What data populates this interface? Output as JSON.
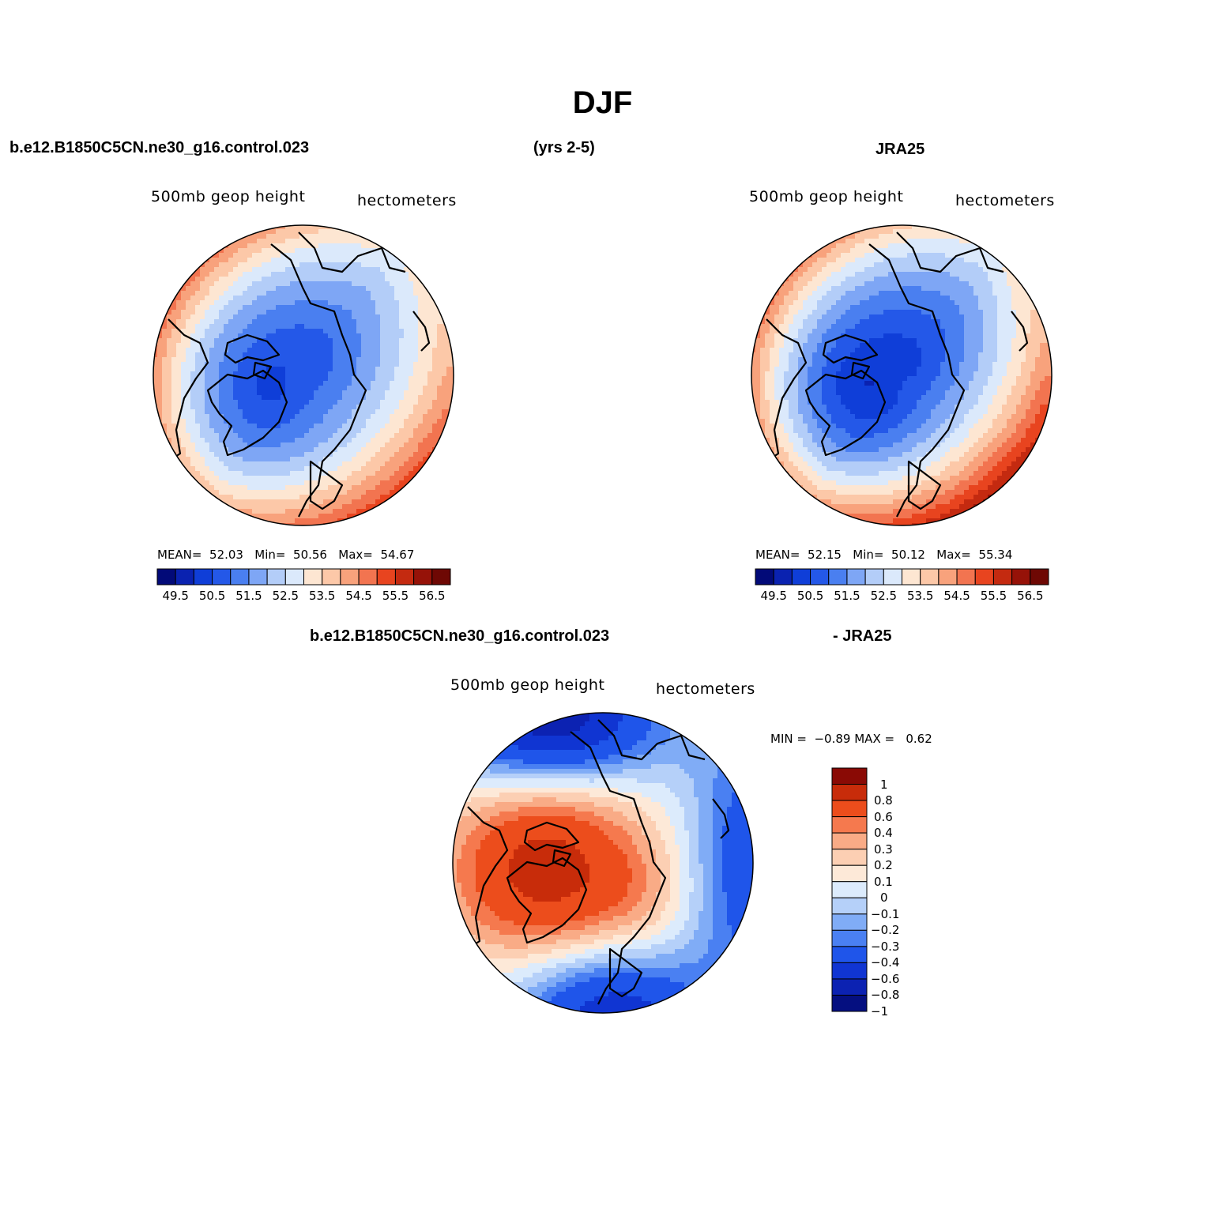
{
  "title": "DJF",
  "header": {
    "case": "b.e12.B1850C5CN.ne30_g16.control.023",
    "years": "(yrs 2-5)",
    "reference": "JRA25",
    "diff_left": "b.e12.B1850C5CN.ne30_g16.control.023",
    "diff_right": "- JRA25"
  },
  "colors": {
    "seq": [
      "#020a78",
      "#0a22b0",
      "#0f3ed8",
      "#2458e8",
      "#4a7ff0",
      "#7ea6f5",
      "#b3cdf8",
      "#dbe9fb",
      "#fde6d2",
      "#fcc8a8",
      "#f8a27c",
      "#f27450",
      "#e8441f",
      "#c42a10",
      "#961208",
      "#6e0804"
    ],
    "diff": [
      "#050f80",
      "#0c22b2",
      "#1035d2",
      "#1f55ea",
      "#4a80f2",
      "#80acf6",
      "#b5d0f9",
      "#dcebfc",
      "#fde9d8",
      "#fccfb3",
      "#f9ab86",
      "#f5794e",
      "#ec4d1c",
      "#c82c0a",
      "#8a0a05"
    ],
    "coast": "#000000"
  },
  "panels": [
    {
      "id": "model",
      "variable": "500mb  geop  height",
      "units": "hectometers",
      "stats": {
        "mean_label": "MEAN=",
        "mean": "52.03",
        "min_label": "Min=",
        "min": "50.56",
        "max_label": "Max=",
        "max": "54.67"
      },
      "field": {
        "center_value": 50.3,
        "pole_lon_shift": -25,
        "rim_value_warm": 55.0,
        "rim_value_cold": 52.2,
        "warm_direction_deg": 110
      }
    },
    {
      "id": "reference",
      "variable": "500mb  geop  height",
      "units": "hectometers",
      "stats": {
        "mean_label": "MEAN=",
        "mean": "52.15",
        "min_label": "Min=",
        "min": "50.12",
        "max_label": "Max=",
        "max": "55.34"
      },
      "field": {
        "center_value": 49.9,
        "pole_lon_shift": -20,
        "rim_value_warm": 55.6,
        "rim_value_cold": 52.0,
        "warm_direction_deg": 105
      }
    }
  ],
  "horizontal_colorbar": {
    "levels": [
      "49.5",
      "50.5",
      "51.5",
      "52.5",
      "53.5",
      "54.5",
      "55.5",
      "56.5"
    ]
  },
  "difference_panel": {
    "variable": "500mb  geop  height",
    "units": "hectometers",
    "stats": {
      "min_label": "MIN =",
      "min": "−0.89",
      "max_label": "MAX =",
      "max": "0.62"
    },
    "colorbar_levels": [
      "1",
      "0.8",
      "0.6",
      "0.4",
      "0.3",
      "0.2",
      "0.1",
      "0",
      "−0.1",
      "−0.2",
      "−0.3",
      "−0.4",
      "−0.6",
      "−0.8",
      "−1"
    ]
  }
}
